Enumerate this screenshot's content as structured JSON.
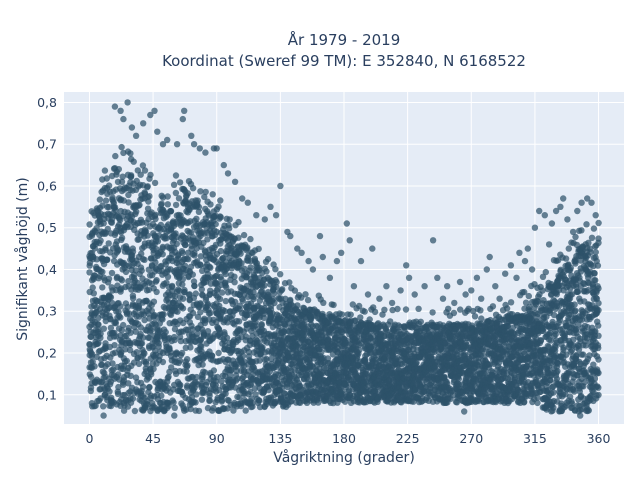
{
  "chart_data": {
    "type": "scatter",
    "title_line1": "År 1979 - 2019",
    "title_line2": "Koordinat (Sweref 99 TM): E 352840, N 6168522",
    "xlabel": "Vågriktning (grader)",
    "ylabel": "Signifikant våghöjd (m)",
    "xlim": [
      -18,
      378
    ],
    "ylim": [
      0.03,
      0.825
    ],
    "x_ticks": [
      0,
      45,
      90,
      135,
      180,
      225,
      270,
      315,
      360
    ],
    "x_tick_labels": [
      "0",
      "45",
      "90",
      "135",
      "180",
      "225",
      "270",
      "315",
      "360"
    ],
    "y_ticks": [
      0.1,
      0.2,
      0.3,
      0.4,
      0.5,
      0.6,
      0.7,
      0.8
    ],
    "y_tick_labels": [
      "0,1",
      "0,2",
      "0,3",
      "0,4",
      "0,5",
      "0,6",
      "0,7",
      "0,8"
    ],
    "grid": true,
    "legend": "none",
    "plot_background": "#e5ecf6",
    "grid_color": "#ffffff",
    "marker_color": "#2e5269",
    "series": [
      {
        "envelope_note_free": true,
        "dense_envelope": [
          [
            0,
            0.07,
            0.48
          ],
          [
            5,
            0.07,
            0.55
          ],
          [
            10,
            0.07,
            0.6
          ],
          [
            15,
            0.07,
            0.63
          ],
          [
            20,
            0.07,
            0.66
          ],
          [
            25,
            0.06,
            0.66
          ],
          [
            30,
            0.06,
            0.64
          ],
          [
            35,
            0.06,
            0.63
          ],
          [
            40,
            0.06,
            0.61
          ],
          [
            45,
            0.06,
            0.58
          ],
          [
            50,
            0.06,
            0.56
          ],
          [
            55,
            0.06,
            0.56
          ],
          [
            60,
            0.06,
            0.58
          ],
          [
            65,
            0.06,
            0.6
          ],
          [
            70,
            0.06,
            0.58
          ],
          [
            75,
            0.06,
            0.57
          ],
          [
            80,
            0.06,
            0.56
          ],
          [
            85,
            0.06,
            0.55
          ],
          [
            90,
            0.06,
            0.54
          ],
          [
            95,
            0.06,
            0.52
          ],
          [
            100,
            0.06,
            0.5
          ],
          [
            105,
            0.06,
            0.48
          ],
          [
            110,
            0.06,
            0.46
          ],
          [
            115,
            0.06,
            0.44
          ],
          [
            120,
            0.07,
            0.42
          ],
          [
            125,
            0.07,
            0.4
          ],
          [
            130,
            0.07,
            0.38
          ],
          [
            135,
            0.07,
            0.36
          ],
          [
            140,
            0.07,
            0.34
          ],
          [
            145,
            0.08,
            0.32
          ],
          [
            150,
            0.08,
            0.31
          ],
          [
            160,
            0.08,
            0.3
          ],
          [
            170,
            0.08,
            0.29
          ],
          [
            180,
            0.08,
            0.28
          ],
          [
            190,
            0.08,
            0.28
          ],
          [
            200,
            0.08,
            0.27
          ],
          [
            210,
            0.08,
            0.27
          ],
          [
            225,
            0.08,
            0.27
          ],
          [
            240,
            0.08,
            0.27
          ],
          [
            255,
            0.08,
            0.27
          ],
          [
            270,
            0.08,
            0.27
          ],
          [
            285,
            0.08,
            0.28
          ],
          [
            295,
            0.08,
            0.29
          ],
          [
            305,
            0.08,
            0.31
          ],
          [
            315,
            0.07,
            0.33
          ],
          [
            320,
            0.07,
            0.35
          ],
          [
            325,
            0.06,
            0.37
          ],
          [
            330,
            0.06,
            0.39
          ],
          [
            335,
            0.06,
            0.41
          ],
          [
            340,
            0.06,
            0.43
          ],
          [
            345,
            0.06,
            0.45
          ],
          [
            350,
            0.06,
            0.47
          ],
          [
            355,
            0.06,
            0.48
          ],
          [
            360,
            0.07,
            0.49
          ]
        ],
        "outliers": [
          [
            18,
            0.79
          ],
          [
            22,
            0.78
          ],
          [
            24,
            0.76
          ],
          [
            27,
            0.8
          ],
          [
            30,
            0.74
          ],
          [
            33,
            0.72
          ],
          [
            38,
            0.75
          ],
          [
            43,
            0.77
          ],
          [
            46,
            0.78
          ],
          [
            48,
            0.73
          ],
          [
            52,
            0.7
          ],
          [
            55,
            0.71
          ],
          [
            62,
            0.7
          ],
          [
            66,
            0.76
          ],
          [
            67,
            0.78
          ],
          [
            72,
            0.72
          ],
          [
            74,
            0.7
          ],
          [
            78,
            0.69
          ],
          [
            82,
            0.68
          ],
          [
            88,
            0.69
          ],
          [
            90,
            0.69
          ],
          [
            95,
            0.65
          ],
          [
            98,
            0.63
          ],
          [
            103,
            0.61
          ],
          [
            108,
            0.57
          ],
          [
            112,
            0.56
          ],
          [
            118,
            0.53
          ],
          [
            124,
            0.52
          ],
          [
            128,
            0.55
          ],
          [
            132,
            0.53
          ],
          [
            135,
            0.6
          ],
          [
            140,
            0.49
          ],
          [
            142,
            0.48
          ],
          [
            147,
            0.45
          ],
          [
            150,
            0.44
          ],
          [
            155,
            0.42
          ],
          [
            158,
            0.4
          ],
          [
            163,
            0.48
          ],
          [
            165,
            0.43
          ],
          [
            170,
            0.38
          ],
          [
            175,
            0.42
          ],
          [
            178,
            0.44
          ],
          [
            182,
            0.51
          ],
          [
            184,
            0.47
          ],
          [
            187,
            0.36
          ],
          [
            192,
            0.42
          ],
          [
            197,
            0.34
          ],
          [
            200,
            0.45
          ],
          [
            205,
            0.33
          ],
          [
            210,
            0.36
          ],
          [
            214,
            0.32
          ],
          [
            220,
            0.35
          ],
          [
            224,
            0.41
          ],
          [
            226,
            0.38
          ],
          [
            230,
            0.34
          ],
          [
            237,
            0.36
          ],
          [
            243,
            0.47
          ],
          [
            246,
            0.38
          ],
          [
            250,
            0.33
          ],
          [
            253,
            0.36
          ],
          [
            258,
            0.32
          ],
          [
            262,
            0.37
          ],
          [
            266,
            0.34
          ],
          [
            270,
            0.35
          ],
          [
            274,
            0.38
          ],
          [
            277,
            0.33
          ],
          [
            281,
            0.4
          ],
          [
            283,
            0.43
          ],
          [
            287,
            0.36
          ],
          [
            290,
            0.33
          ],
          [
            294,
            0.39
          ],
          [
            298,
            0.41
          ],
          [
            302,
            0.38
          ],
          [
            304,
            0.44
          ],
          [
            308,
            0.42
          ],
          [
            310,
            0.45
          ],
          [
            313,
            0.4
          ],
          [
            315,
            0.5
          ],
          [
            318,
            0.54
          ],
          [
            322,
            0.53
          ],
          [
            325,
            0.46
          ],
          [
            327,
            0.51
          ],
          [
            330,
            0.54
          ],
          [
            333,
            0.55
          ],
          [
            335,
            0.57
          ],
          [
            338,
            0.52
          ],
          [
            342,
            0.49
          ],
          [
            345,
            0.54
          ],
          [
            348,
            0.56
          ],
          [
            352,
            0.57
          ],
          [
            355,
            0.56
          ],
          [
            358,
            0.53
          ],
          [
            10,
            0.05
          ],
          [
            60,
            0.05
          ],
          [
            265,
            0.06
          ],
          [
            347,
            0.05
          ]
        ]
      }
    ]
  }
}
